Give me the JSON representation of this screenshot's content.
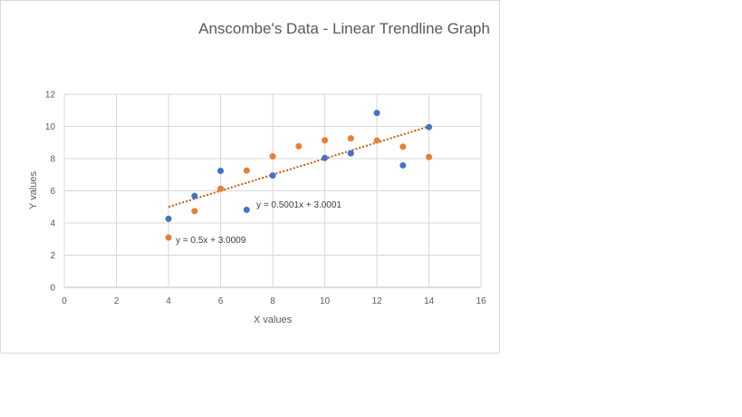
{
  "chart_data": {
    "type": "scatter",
    "title": "Anscombe's Data - Linear Trendline Graph",
    "xlabel": "X values",
    "ylabel": "Y values",
    "xlim": [
      0,
      16
    ],
    "ylim": [
      0,
      12
    ],
    "xticks": [
      0,
      2,
      4,
      6,
      8,
      10,
      12,
      14,
      16
    ],
    "yticks": [
      0,
      2,
      4,
      6,
      8,
      10,
      12
    ],
    "grid": true,
    "series": [
      {
        "color": "#4472c4",
        "points": [
          [
            4,
            4.26
          ],
          [
            5,
            5.68
          ],
          [
            6,
            7.24
          ],
          [
            7,
            4.82
          ],
          [
            8,
            6.95
          ],
          [
            10,
            8.04
          ],
          [
            11,
            8.33
          ],
          [
            12,
            10.84
          ],
          [
            13,
            7.58
          ],
          [
            14,
            9.96
          ]
        ],
        "equation": "y = 0.5001x + 3.0001",
        "trendline": {
          "x1": 4,
          "y1": 5.0005,
          "x2": 14,
          "y2": 10.0015
        }
      },
      {
        "color": "#ed7d31",
        "points": [
          [
            4,
            3.1
          ],
          [
            5,
            4.74
          ],
          [
            6,
            6.13
          ],
          [
            7,
            7.26
          ],
          [
            8,
            8.14
          ],
          [
            9,
            8.77
          ],
          [
            10,
            9.14
          ],
          [
            11,
            9.26
          ],
          [
            12,
            9.13
          ],
          [
            13,
            8.74
          ],
          [
            14,
            8.1
          ]
        ],
        "equation": "y = 0.5x + 3.0009",
        "trendline": {
          "x1": 4,
          "y1": 5.0009,
          "x2": 14,
          "y2": 10.0009
        }
      }
    ]
  }
}
